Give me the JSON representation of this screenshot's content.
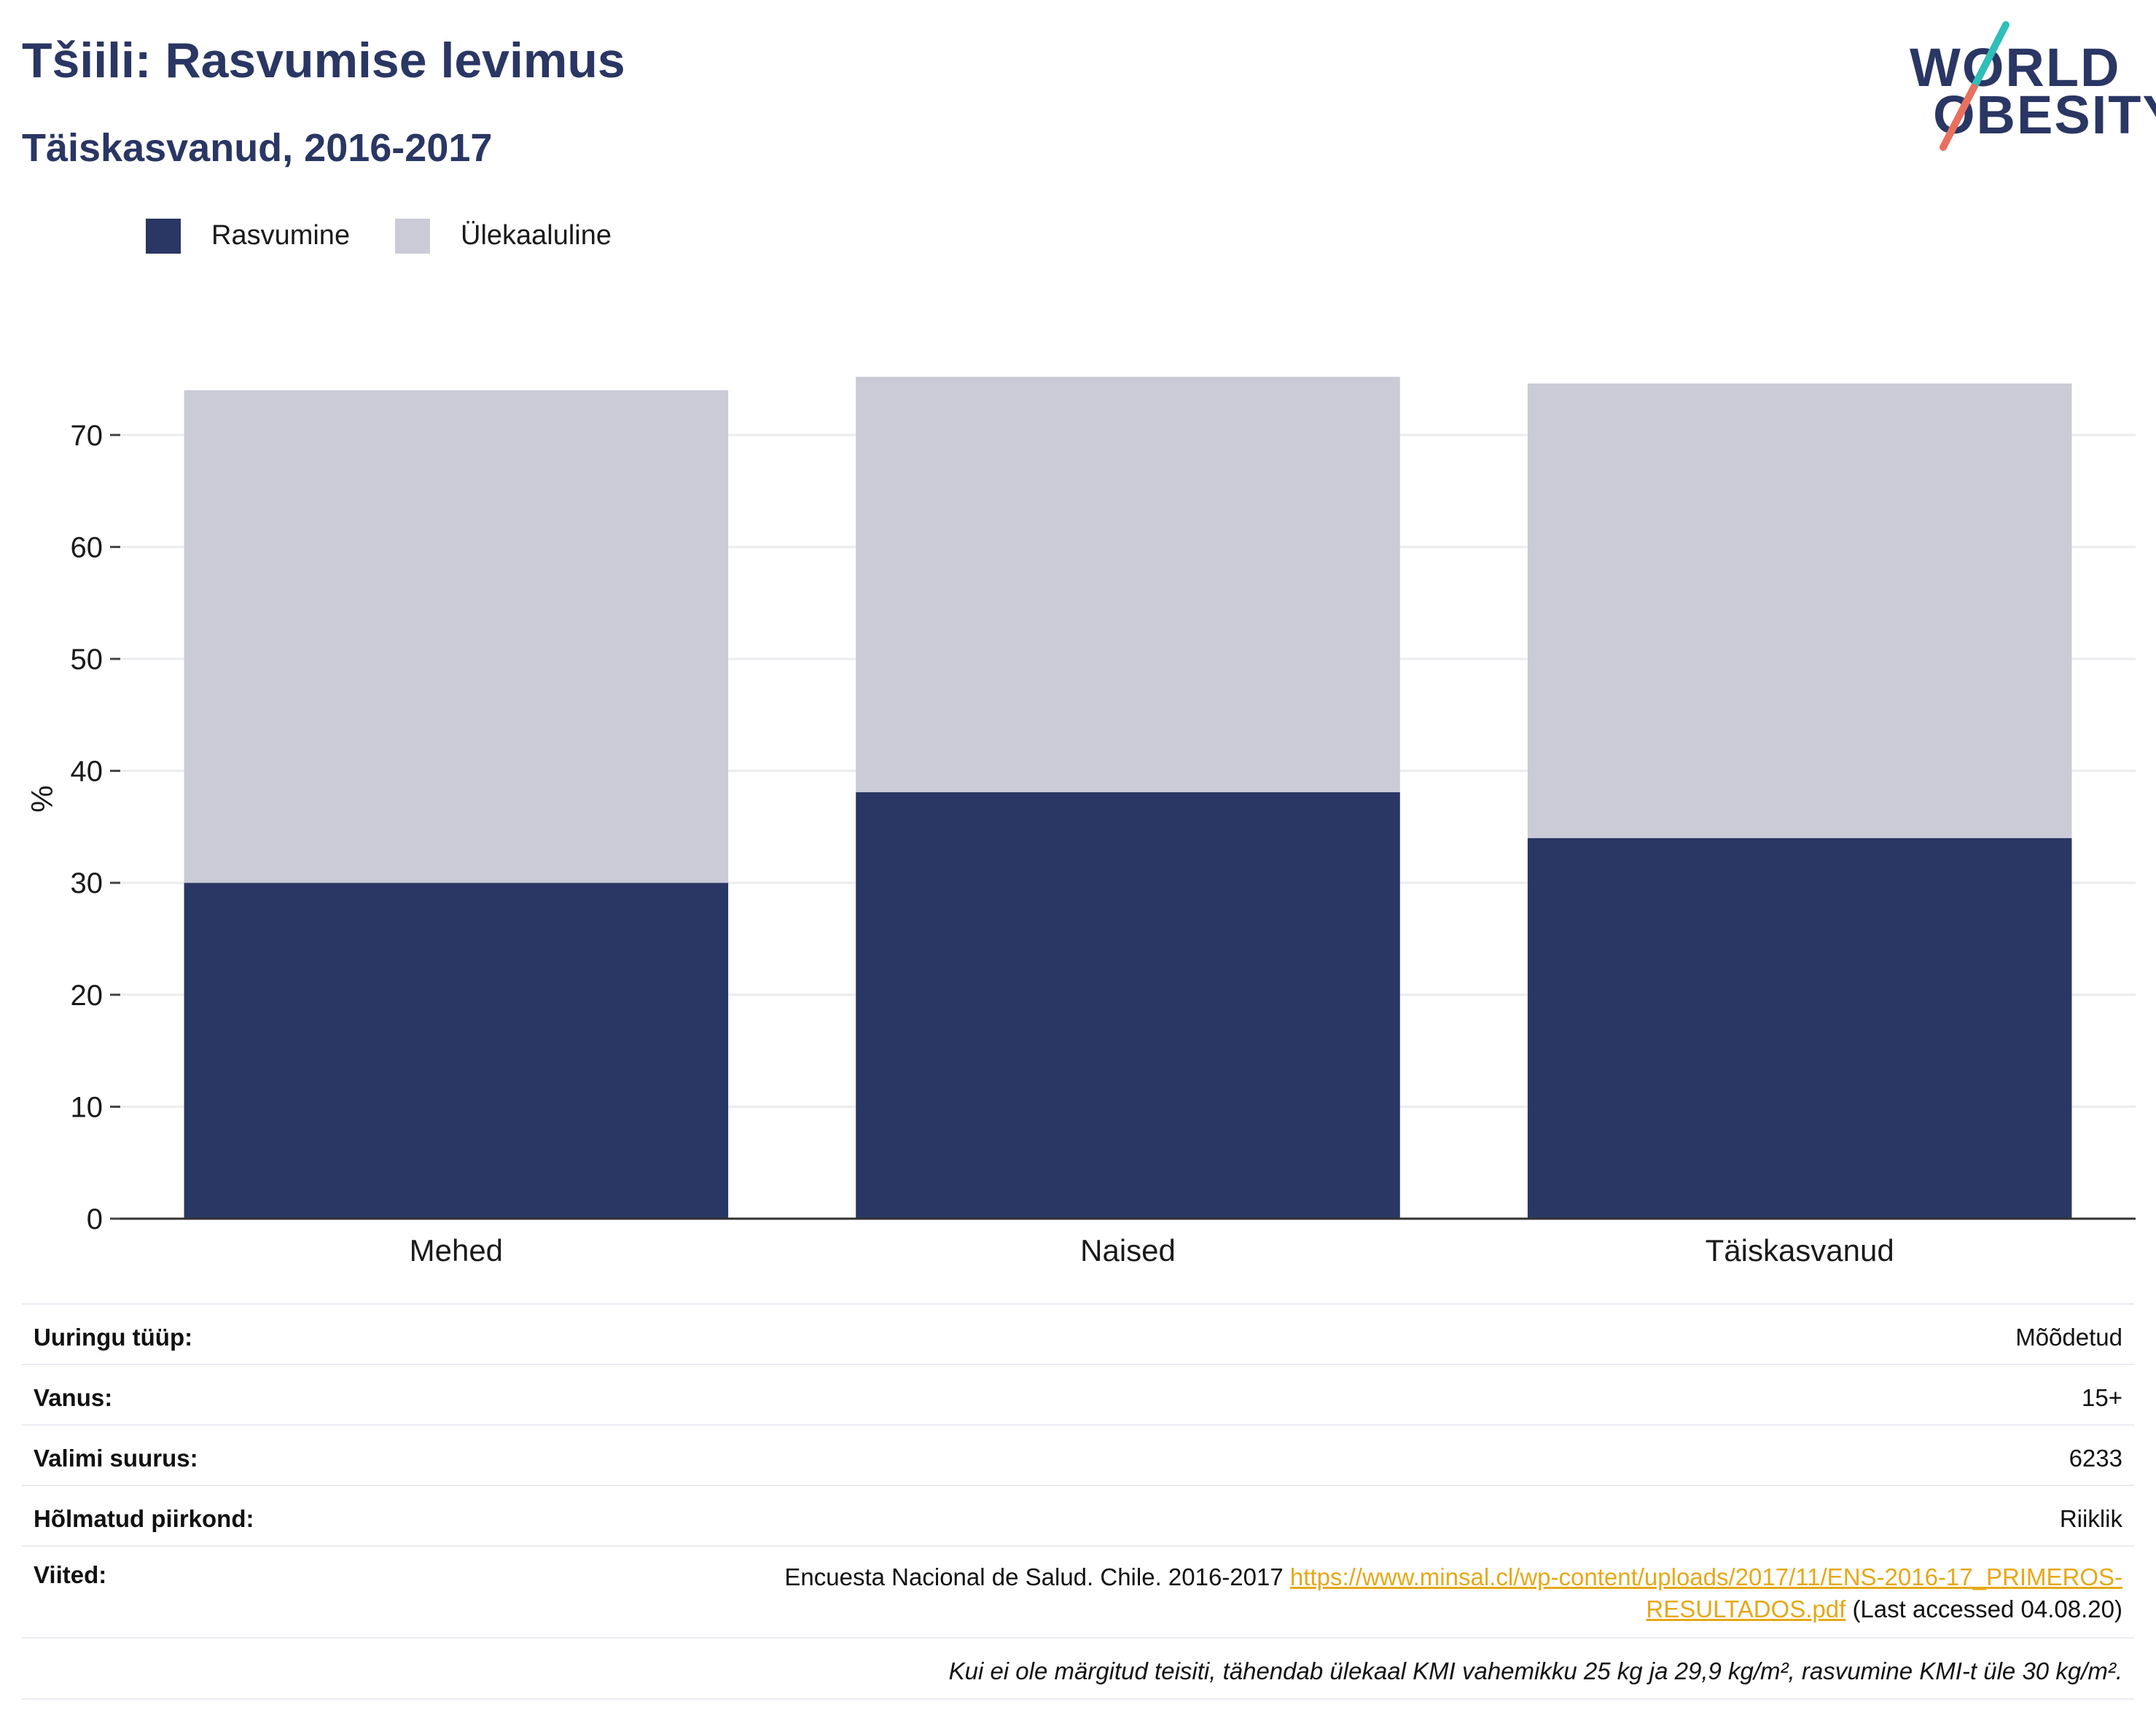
{
  "header": {
    "title": "Tšiili: Rasvumise levimus",
    "subtitle": "Täiskasvanud, 2016-2017"
  },
  "logo": {
    "line1": "WORLD",
    "line2": "OBESITY",
    "colors": {
      "text": "#2a3663",
      "slash_top": "#2ebfb8",
      "slash_bottom": "#e8705e"
    }
  },
  "legend": [
    {
      "label": "Rasvumine",
      "color": "#2a3663"
    },
    {
      "label": "Ülekaaluline",
      "color": "#cacbd7"
    }
  ],
  "chart_data": {
    "type": "bar",
    "stacked": true,
    "categories": [
      "Mehed",
      "Naised",
      "Täiskasvanud"
    ],
    "series": [
      {
        "name": "Rasvumine",
        "color": "#2a3663",
        "values": [
          30.0,
          38.1,
          34.0
        ]
      },
      {
        "name": "Ülekaaluline",
        "color": "#cacbd7",
        "values": [
          44.0,
          37.1,
          40.6
        ]
      }
    ],
    "ylabel": "%",
    "ylim": [
      0,
      75
    ],
    "yticks": [
      0,
      10,
      20,
      30,
      40,
      50,
      60,
      70
    ],
    "grid": true,
    "legend_position": "top-left"
  },
  "details": [
    {
      "label": "Uuringu tüüp:",
      "value": "Mõõdetud"
    },
    {
      "label": "Vanus:",
      "value": "15+"
    },
    {
      "label": "Valimi suurus:",
      "value": "6233"
    },
    {
      "label": "Hõlmatud piirkond:",
      "value": "Riiklik"
    }
  ],
  "reference": {
    "label": "Viited:",
    "text": "Encuesta Nacional de Salud. Chile. 2016-2017",
    "link_line1": "https://www.minsal.cl/wp-content/uploads/2017/11/ENS-2016-17_PRIMEROS-",
    "link_line2": "RESULTADOS.pdf",
    "accessed": "(Last accessed 04.08.20)"
  },
  "footnote": "Kui ei ole märgitud teisiti, tähendab ülekaal KMI vahemikku 25 kg ja 29,9 kg/m², rasvumine KMI-t üle 30 kg/m²."
}
